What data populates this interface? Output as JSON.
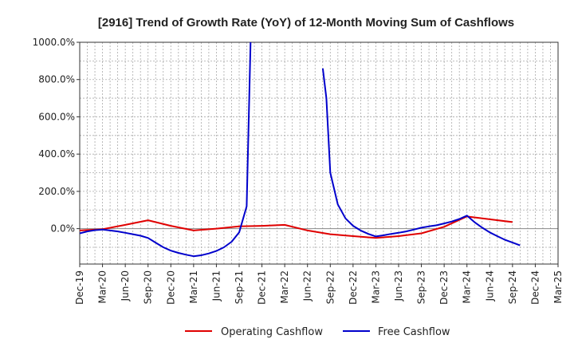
{
  "chart_data": {
    "type": "line",
    "title": "[2916]  Trend of Growth Rate (YoY) of 12-Month Moving Sum of Cashflows",
    "xlabel": "",
    "ylabel": "",
    "categories": [
      "Dec-19",
      "Mar-20",
      "Jun-20",
      "Sep-20",
      "Dec-20",
      "Mar-21",
      "Jun-21",
      "Sep-21",
      "Dec-21",
      "Mar-22",
      "Jun-22",
      "Sep-22",
      "Dec-22",
      "Mar-23",
      "Jun-23",
      "Sep-23",
      "Dec-23",
      "Mar-24",
      "Jun-24",
      "Sep-24",
      "Dec-24",
      "Mar-25"
    ],
    "yticks": [
      "1000.0%",
      "800.0%",
      "600.0%",
      "400.0%",
      "200.0%",
      "0.0%"
    ],
    "ylim": [
      -190,
      1000
    ],
    "grid": true,
    "legend_position": "bottom",
    "series": [
      {
        "name": "Operating Cashflow",
        "color": "#e00000",
        "points": [
          [
            0,
            -10
          ],
          [
            1,
            -3
          ],
          [
            2,
            20
          ],
          [
            3,
            45
          ],
          [
            4,
            15
          ],
          [
            5,
            -10
          ],
          [
            6,
            0
          ],
          [
            7,
            12
          ],
          [
            8,
            15
          ],
          [
            9,
            20
          ],
          [
            10,
            -10
          ],
          [
            11,
            -30
          ],
          [
            12,
            -40
          ],
          [
            13,
            -50
          ],
          [
            14,
            -40
          ],
          [
            15,
            -25
          ],
          [
            16,
            10
          ],
          [
            17,
            65
          ],
          [
            18,
            50
          ],
          [
            19,
            35
          ]
        ]
      },
      {
        "name": "Free Cashflow",
        "color": "#0000cc",
        "points": [
          [
            0,
            -25
          ],
          [
            0.33,
            -15
          ],
          [
            0.67,
            -8
          ],
          [
            1,
            -5
          ],
          [
            1.33,
            -10
          ],
          [
            1.67,
            -15
          ],
          [
            2,
            -22
          ],
          [
            2.33,
            -30
          ],
          [
            2.67,
            -38
          ],
          [
            3,
            -50
          ],
          [
            3.33,
            -75
          ],
          [
            3.67,
            -100
          ],
          [
            4,
            -118
          ],
          [
            4.33,
            -130
          ],
          [
            4.67,
            -140
          ],
          [
            5,
            -148
          ],
          [
            5.33,
            -143
          ],
          [
            5.67,
            -133
          ],
          [
            6,
            -120
          ],
          [
            6.33,
            -100
          ],
          [
            6.67,
            -70
          ],
          [
            7,
            -20
          ],
          [
            7.33,
            120
          ],
          [
            7.5,
            1000
          ],
          [
            null,
            null
          ],
          [
            10.67,
            860
          ],
          [
            10.83,
            700
          ],
          [
            11,
            300
          ],
          [
            11.33,
            130
          ],
          [
            11.67,
            55
          ],
          [
            12,
            15
          ],
          [
            12.33,
            -10
          ],
          [
            12.67,
            -28
          ],
          [
            13,
            -42
          ],
          [
            13.33,
            -36
          ],
          [
            13.67,
            -28
          ],
          [
            14,
            -22
          ],
          [
            14.33,
            -15
          ],
          [
            14.67,
            -5
          ],
          [
            15,
            5
          ],
          [
            15.33,
            12
          ],
          [
            15.67,
            18
          ],
          [
            16,
            28
          ],
          [
            16.33,
            38
          ],
          [
            16.67,
            52
          ],
          [
            17,
            70
          ],
          [
            17.33,
            35
          ],
          [
            17.67,
            5
          ],
          [
            18,
            -20
          ],
          [
            18.33,
            -40
          ],
          [
            18.67,
            -60
          ],
          [
            19,
            -75
          ],
          [
            19.33,
            -90
          ]
        ]
      }
    ]
  }
}
